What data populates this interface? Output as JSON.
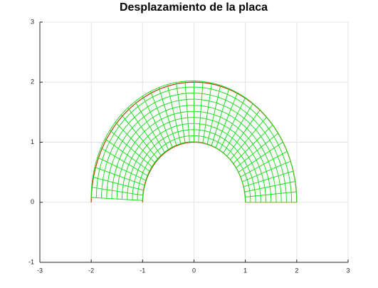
{
  "chart_data": {
    "type": "mesh",
    "title": "Desplazamiento de la placa",
    "xlim": [
      -3,
      3
    ],
    "ylim": [
      -1,
      3
    ],
    "xticks": [
      -3,
      -2,
      -1,
      0,
      1,
      2,
      3
    ],
    "yticks": [
      -1,
      0,
      1,
      2,
      3
    ],
    "grid": true,
    "inner_radius": 1,
    "outer_radius": 2,
    "rings": 10,
    "spokes": 36,
    "tip_displacement": [
      0.03,
      0.08
    ],
    "original_color": "#b04000",
    "deformed_color": "#22dd22"
  }
}
